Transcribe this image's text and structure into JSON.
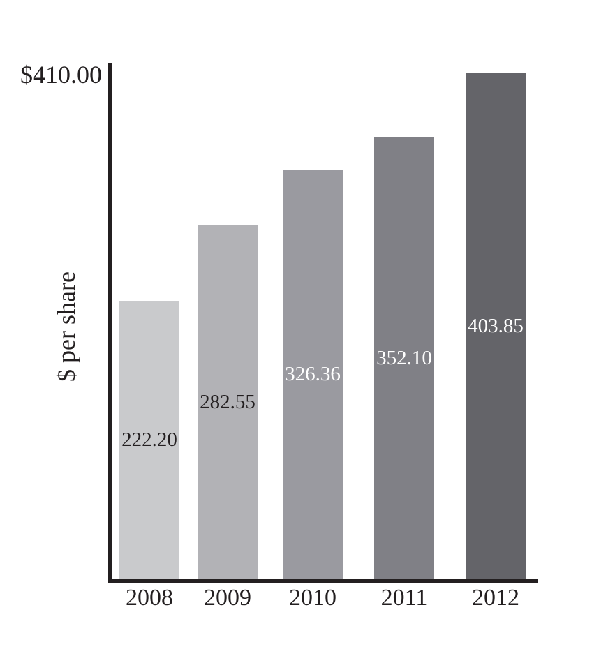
{
  "chart_data": {
    "type": "bar",
    "title": "",
    "xlabel": "",
    "ylabel": "$ per share",
    "y_axis_max_label": "$410.00",
    "ylim": [
      0,
      410
    ],
    "categories": [
      "2008",
      "2009",
      "2010",
      "2011",
      "2012"
    ],
    "values": [
      222.2,
      282.55,
      326.36,
      352.1,
      403.85
    ],
    "value_labels": [
      "222.20",
      "282.55",
      "326.36",
      "352.10",
      "403.85"
    ],
    "bar_colors": [
      "#c9cacc",
      "#b2b2b6",
      "#9a9aa0",
      "#808086",
      "#646469"
    ],
    "value_label_colors": [
      "#231f20",
      "#231f20",
      "#ffffff",
      "#ffffff",
      "#ffffff"
    ],
    "axis_color": "#231f20",
    "grid": false,
    "legend": "none"
  }
}
